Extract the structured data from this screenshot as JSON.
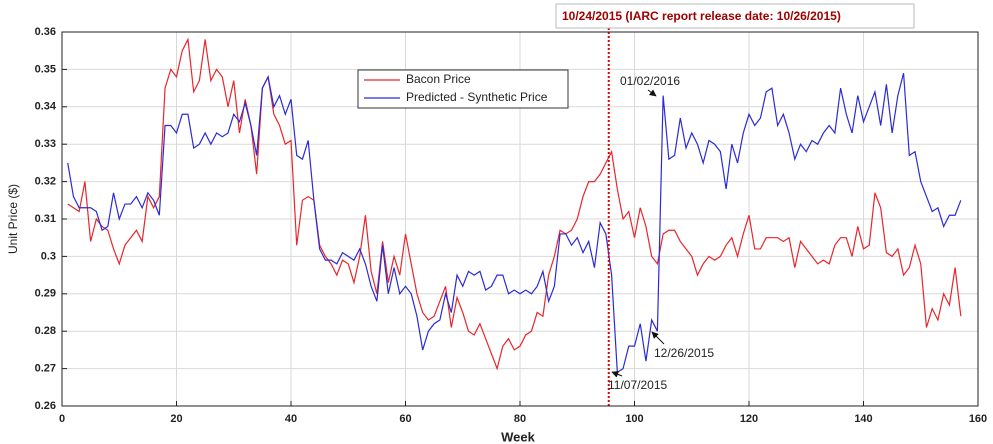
{
  "chart_data": {
    "type": "line",
    "y_label": "Unit Price ($)",
    "x_label": "Week",
    "annotations": [
      "10/24/2015 (IARC report release date: 10/26/2015)",
      "01/02/2016",
      "12/26/2015",
      "11/07/2015"
    ],
    "vline": {
      "x": 95.5,
      "color": "#e00000"
    },
    "xlim": [
      0,
      160
    ],
    "xticks": [
      0,
      20,
      40,
      60,
      80,
      100,
      120,
      140,
      160
    ],
    "ylim": [
      0.26,
      0.36
    ],
    "yticks": [
      0.26,
      0.27,
      0.28,
      0.29,
      0.3,
      0.31,
      0.32,
      0.33,
      0.34,
      0.35,
      0.36
    ],
    "grid": true,
    "x": [
      1,
      2,
      3,
      4,
      5,
      6,
      7,
      8,
      9,
      10,
      11,
      12,
      13,
      14,
      15,
      16,
      17,
      18,
      19,
      20,
      21,
      22,
      23,
      24,
      25,
      26,
      27,
      28,
      29,
      30,
      31,
      32,
      33,
      34,
      35,
      36,
      37,
      38,
      39,
      40,
      41,
      42,
      43,
      44,
      45,
      46,
      47,
      48,
      49,
      50,
      51,
      52,
      53,
      54,
      55,
      56,
      57,
      58,
      59,
      60,
      61,
      62,
      63,
      64,
      65,
      66,
      67,
      68,
      69,
      70,
      71,
      72,
      73,
      74,
      75,
      76,
      77,
      78,
      79,
      80,
      81,
      82,
      83,
      84,
      85,
      86,
      87,
      88,
      89,
      90,
      91,
      92,
      93,
      94,
      95,
      96,
      97,
      98,
      99,
      100,
      101,
      102,
      103,
      104,
      105,
      106,
      107,
      108,
      109,
      110,
      111,
      112,
      113,
      114,
      115,
      116,
      117,
      118,
      119,
      120,
      121,
      122,
      123,
      124,
      125,
      126,
      127,
      128,
      129,
      130,
      131,
      132,
      133,
      134,
      135,
      136,
      137,
      138,
      139,
      140,
      141,
      142,
      143,
      144,
      145,
      146,
      147,
      148,
      149,
      150,
      151,
      152,
      153,
      154,
      155,
      156,
      157
    ],
    "series": [
      {
        "name": "Bacon Price",
        "color": "#e8262b",
        "values": [
          0.314,
          0.313,
          0.312,
          0.32,
          0.304,
          0.31,
          0.308,
          0.307,
          0.302,
          0.298,
          0.303,
          0.305,
          0.307,
          0.304,
          0.316,
          0.313,
          0.316,
          0.345,
          0.35,
          0.348,
          0.355,
          0.358,
          0.344,
          0.347,
          0.358,
          0.347,
          0.35,
          0.348,
          0.34,
          0.347,
          0.333,
          0.342,
          0.335,
          0.322,
          0.345,
          0.348,
          0.338,
          0.335,
          0.33,
          0.331,
          0.303,
          0.315,
          0.316,
          0.315,
          0.303,
          0.3,
          0.298,
          0.295,
          0.299,
          0.298,
          0.293,
          0.3,
          0.311,
          0.296,
          0.29,
          0.304,
          0.293,
          0.3,
          0.295,
          0.306,
          0.298,
          0.29,
          0.285,
          0.283,
          0.284,
          0.288,
          0.292,
          0.281,
          0.289,
          0.285,
          0.28,
          0.279,
          0.282,
          0.278,
          0.274,
          0.27,
          0.276,
          0.278,
          0.275,
          0.276,
          0.279,
          0.28,
          0.285,
          0.284,
          0.295,
          0.3,
          0.307,
          0.306,
          0.307,
          0.31,
          0.316,
          0.32,
          0.32,
          0.322,
          0.325,
          0.328,
          0.318,
          0.31,
          0.312,
          0.305,
          0.313,
          0.308,
          0.3,
          0.298,
          0.306,
          0.307,
          0.307,
          0.304,
          0.302,
          0.3,
          0.295,
          0.298,
          0.3,
          0.299,
          0.3,
          0.303,
          0.305,
          0.3,
          0.306,
          0.311,
          0.302,
          0.302,
          0.305,
          0.305,
          0.305,
          0.304,
          0.305,
          0.297,
          0.304,
          0.302,
          0.3,
          0.298,
          0.299,
          0.298,
          0.303,
          0.305,
          0.305,
          0.3,
          0.308,
          0.302,
          0.303,
          0.317,
          0.313,
          0.301,
          0.3,
          0.302,
          0.295,
          0.297,
          0.303,
          0.298,
          0.281,
          0.286,
          0.283,
          0.29,
          0.287,
          0.297,
          0.284
        ]
      },
      {
        "name": "Predicted - Synthetic Price",
        "color": "#2b2bd6",
        "values": [
          0.325,
          0.316,
          0.313,
          0.313,
          0.313,
          0.312,
          0.307,
          0.308,
          0.317,
          0.31,
          0.314,
          0.314,
          0.316,
          0.313,
          0.317,
          0.315,
          0.311,
          0.335,
          0.335,
          0.333,
          0.338,
          0.338,
          0.329,
          0.33,
          0.333,
          0.33,
          0.333,
          0.332,
          0.333,
          0.338,
          0.336,
          0.341,
          0.335,
          0.327,
          0.345,
          0.348,
          0.34,
          0.343,
          0.338,
          0.342,
          0.327,
          0.326,
          0.331,
          0.315,
          0.302,
          0.299,
          0.299,
          0.298,
          0.301,
          0.3,
          0.299,
          0.302,
          0.298,
          0.292,
          0.288,
          0.303,
          0.29,
          0.297,
          0.29,
          0.292,
          0.29,
          0.284,
          0.275,
          0.28,
          0.282,
          0.283,
          0.29,
          0.285,
          0.295,
          0.292,
          0.296,
          0.295,
          0.296,
          0.291,
          0.292,
          0.295,
          0.295,
          0.29,
          0.291,
          0.29,
          0.291,
          0.29,
          0.292,
          0.296,
          0.288,
          0.292,
          0.306,
          0.306,
          0.303,
          0.305,
          0.301,
          0.304,
          0.297,
          0.309,
          0.306,
          0.295,
          0.269,
          0.27,
          0.276,
          0.276,
          0.282,
          0.272,
          0.283,
          0.28,
          0.343,
          0.326,
          0.327,
          0.337,
          0.329,
          0.333,
          0.33,
          0.325,
          0.331,
          0.33,
          0.328,
          0.318,
          0.33,
          0.325,
          0.333,
          0.338,
          0.335,
          0.337,
          0.344,
          0.345,
          0.335,
          0.338,
          0.333,
          0.326,
          0.33,
          0.328,
          0.331,
          0.33,
          0.333,
          0.335,
          0.333,
          0.345,
          0.338,
          0.333,
          0.343,
          0.336,
          0.34,
          0.344,
          0.335,
          0.346,
          0.333,
          0.343,
          0.349,
          0.327,
          0.328,
          0.32,
          0.316,
          0.312,
          0.313,
          0.308,
          0.311,
          0.311,
          0.315
        ]
      }
    ]
  }
}
